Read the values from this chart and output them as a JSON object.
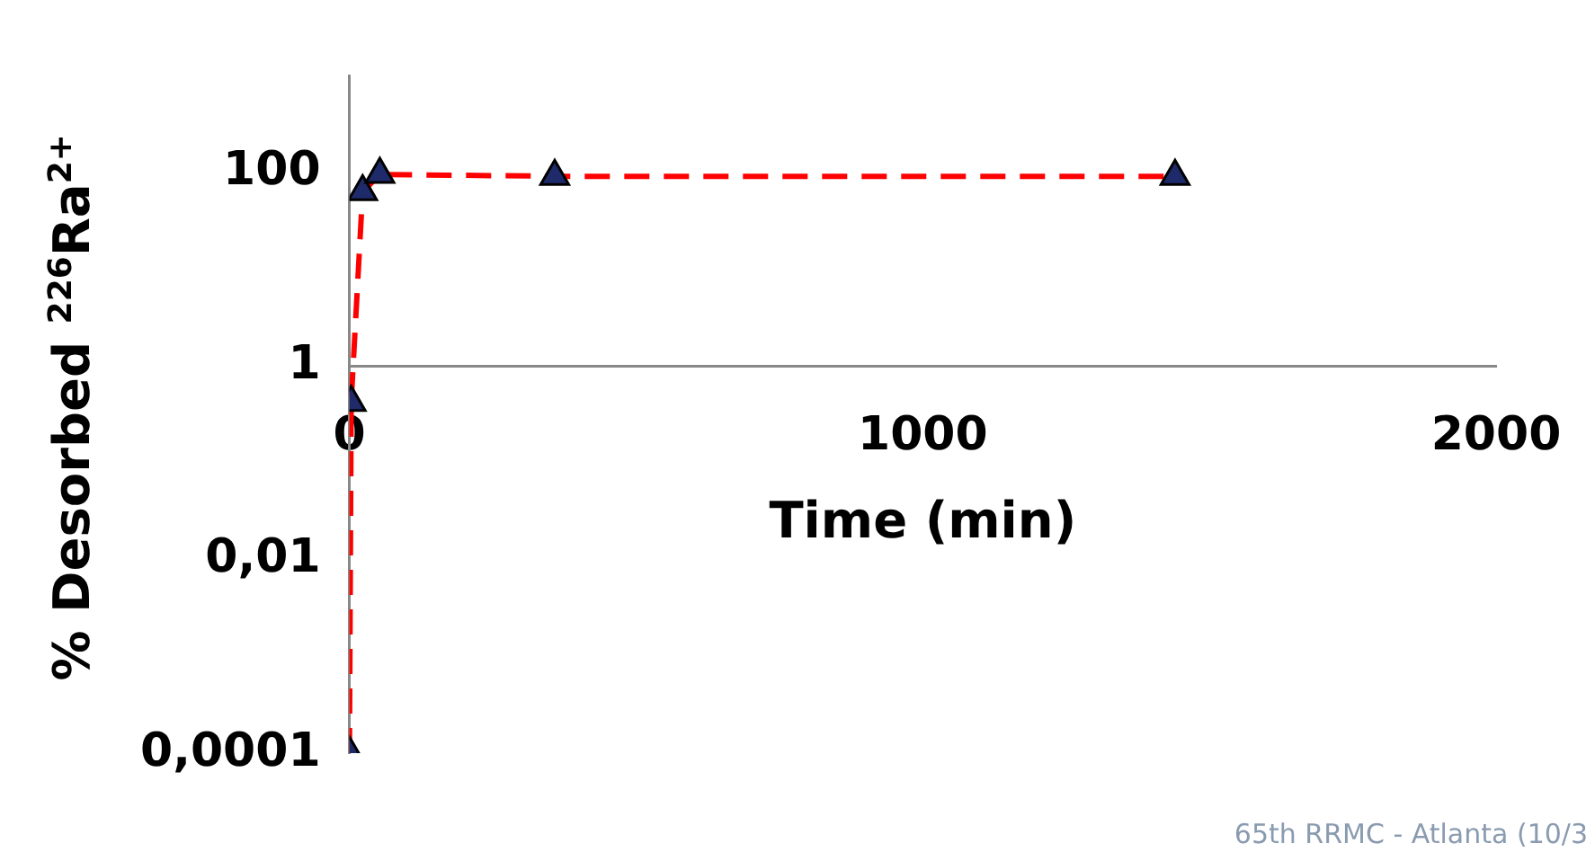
{
  "chart_data": {
    "type": "line",
    "xlabel": "Time (min)",
    "ylabel": "% Desorbed $^{226}$Ra$^{2+}$",
    "log": "y",
    "x": [
      0,
      3,
      23,
      53,
      358,
      1440
    ],
    "series": [
      {
        "color": "#ff0000",
        "values": [
          0.0001,
          0.42,
          63,
          95,
          91,
          91
        ]
      }
    ],
    "xlim": [
      0,
      2000
    ],
    "xticks": [
      0,
      1000,
      2000
    ],
    "ylim": [
      0.0001,
      1000
    ],
    "yticks": [
      {
        "value": 0.0001,
        "label": "0,0001"
      },
      {
        "value": 0.01,
        "label": "0,01"
      },
      1,
      100
    ],
    "marker": "triangle",
    "line_style": "dashed",
    "grid": false,
    "legend": false,
    "annotations": [
      "65th RRMC - Atlanta (10/3"
    ]
  }
}
